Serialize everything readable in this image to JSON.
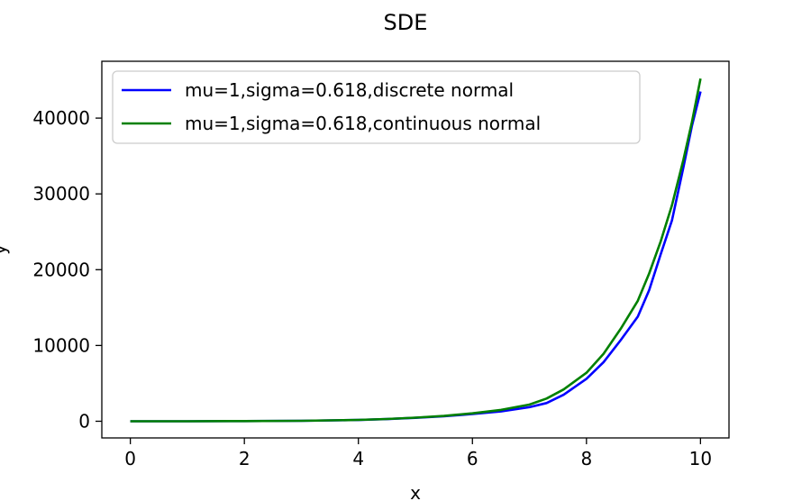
{
  "chart_data": {
    "type": "line",
    "title": "SDE",
    "xlabel": "x",
    "ylabel": "y",
    "xlim": [
      -0.5,
      10.5
    ],
    "ylim": [
      -2200,
      47500
    ],
    "xticks": [
      0,
      2,
      4,
      6,
      8,
      10
    ],
    "yticks": [
      0,
      10000,
      20000,
      30000,
      40000
    ],
    "grid": false,
    "legend_position": "upper-left",
    "series": [
      {
        "name": "mu=1,sigma=0.618,discrete normal",
        "color": "#0000ff",
        "x": [
          0,
          1,
          2,
          3,
          4,
          4.5,
          5,
          5.5,
          6,
          6.5,
          7,
          7.3,
          7.6,
          8,
          8.3,
          8.6,
          8.9,
          9.1,
          9.3,
          9.5,
          9.7,
          9.85,
          10
        ],
        "y": [
          0,
          5,
          20,
          60,
          170,
          280,
          450,
          650,
          950,
          1300,
          1850,
          2400,
          3500,
          5600,
          7800,
          10700,
          13800,
          17300,
          22000,
          26500,
          33500,
          39000,
          43500
        ]
      },
      {
        "name": "mu=1,sigma=0.618,continuous normal",
        "color": "#008000",
        "x": [
          0,
          1,
          2,
          3,
          4,
          4.5,
          5,
          5.5,
          6,
          6.5,
          7,
          7.3,
          7.6,
          8,
          8.3,
          8.6,
          8.9,
          9.1,
          9.3,
          9.5,
          9.7,
          9.85,
          10
        ],
        "y": [
          0,
          5,
          20,
          60,
          180,
          300,
          480,
          700,
          1050,
          1500,
          2200,
          3000,
          4200,
          6400,
          8900,
          12200,
          15900,
          19500,
          23700,
          28500,
          34500,
          39500,
          45200
        ]
      }
    ]
  }
}
